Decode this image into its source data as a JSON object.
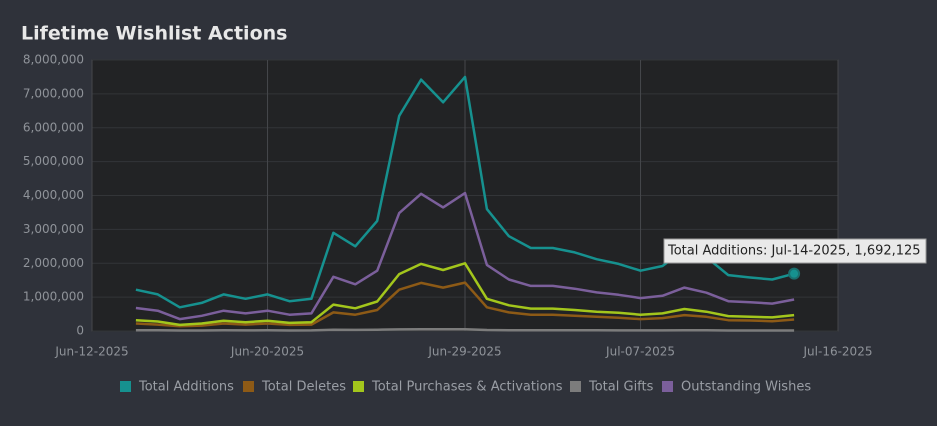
{
  "chart_data": {
    "type": "line",
    "title": "Lifetime Wishlist Actions",
    "x": [
      "Jun-14-2025",
      "Jun-15-2025",
      "Jun-16-2025",
      "Jun-17-2025",
      "Jun-18-2025",
      "Jun-19-2025",
      "Jun-20-2025",
      "Jun-21-2025",
      "Jun-22-2025",
      "Jun-23-2025",
      "Jun-24-2025",
      "Jun-25-2025",
      "Jun-26-2025",
      "Jun-27-2025",
      "Jun-28-2025",
      "Jun-29-2025",
      "Jun-30-2025",
      "Jul-01-2025",
      "Jul-02-2025",
      "Jul-03-2025",
      "Jul-04-2025",
      "Jul-05-2025",
      "Jul-06-2025",
      "Jul-07-2025",
      "Jul-08-2025",
      "Jul-09-2025",
      "Jul-10-2025",
      "Jul-11-2025",
      "Jul-12-2025",
      "Jul-13-2025",
      "Jul-14-2025"
    ],
    "series": [
      {
        "name": "Total Additions",
        "color": "#16918f",
        "values": [
          1220000,
          1080000,
          700000,
          830000,
          1080000,
          950000,
          1080000,
          880000,
          950000,
          2900000,
          2500000,
          3250000,
          6350000,
          7420000,
          6750000,
          7500000,
          3600000,
          2800000,
          2450000,
          2450000,
          2320000,
          2120000,
          1980000,
          1780000,
          1920000,
          2400000,
          2180000,
          1650000,
          1580000,
          1520000,
          1692125
        ]
      },
      {
        "name": "Total Deletes",
        "color": "#8d5a16",
        "values": [
          220000,
          190000,
          140000,
          160000,
          220000,
          190000,
          220000,
          180000,
          190000,
          550000,
          480000,
          620000,
          1220000,
          1420000,
          1280000,
          1430000,
          700000,
          550000,
          480000,
          480000,
          450000,
          420000,
          390000,
          350000,
          380000,
          470000,
          420000,
          320000,
          310000,
          290000,
          340000
        ]
      },
      {
        "name": "Total Purchases & Activations",
        "color": "#a3c61c",
        "values": [
          320000,
          280000,
          180000,
          220000,
          300000,
          260000,
          300000,
          240000,
          260000,
          780000,
          670000,
          870000,
          1680000,
          1980000,
          1800000,
          2000000,
          950000,
          760000,
          660000,
          660000,
          620000,
          570000,
          540000,
          480000,
          520000,
          650000,
          570000,
          440000,
          420000,
          400000,
          470000
        ]
      },
      {
        "name": "Total Gifts",
        "color": "#7c7c7c",
        "values": [
          20000,
          20000,
          15000,
          15000,
          20000,
          18000,
          20000,
          16000,
          18000,
          35000,
          32000,
          38000,
          48000,
          52000,
          50000,
          52000,
          30000,
          25000,
          22000,
          22000,
          21000,
          20000,
          19000,
          17000,
          18000,
          22000,
          20000,
          16000,
          15000,
          15000,
          16000
        ]
      },
      {
        "name": "Outstanding Wishes",
        "color": "#7b5f9b",
        "values": [
          680000,
          600000,
          350000,
          450000,
          600000,
          520000,
          600000,
          480000,
          520000,
          1600000,
          1380000,
          1780000,
          3480000,
          4050000,
          3650000,
          4070000,
          1950000,
          1520000,
          1330000,
          1330000,
          1250000,
          1140000,
          1070000,
          970000,
          1040000,
          1280000,
          1130000,
          880000,
          850000,
          810000,
          930000
        ]
      }
    ],
    "xlim": [
      "Jun-12-2025",
      "Jul-16-2025"
    ],
    "xticks": [
      "Jun-12-2025",
      "Jun-20-2025",
      "Jun-29-2025",
      "Jul-07-2025",
      "Jul-16-2025"
    ],
    "ylim": [
      0,
      8000000
    ],
    "yticks": [
      {
        "value": 0,
        "label": "0"
      },
      {
        "value": 1000000,
        "label": "1,000,000"
      },
      {
        "value": 2000000,
        "label": "2,000,000"
      },
      {
        "value": 3000000,
        "label": "3,000,000"
      },
      {
        "value": 4000000,
        "label": "4,000,000"
      },
      {
        "value": 5000000,
        "label": "5,000,000"
      },
      {
        "value": 6000000,
        "label": "6,000,000"
      },
      {
        "value": 7000000,
        "label": "7,000,000"
      },
      {
        "value": 8000000,
        "label": "8,000,000"
      }
    ],
    "grid": true,
    "tooltip": "Total Additions: Jul-14-2025, 1,692,125"
  }
}
